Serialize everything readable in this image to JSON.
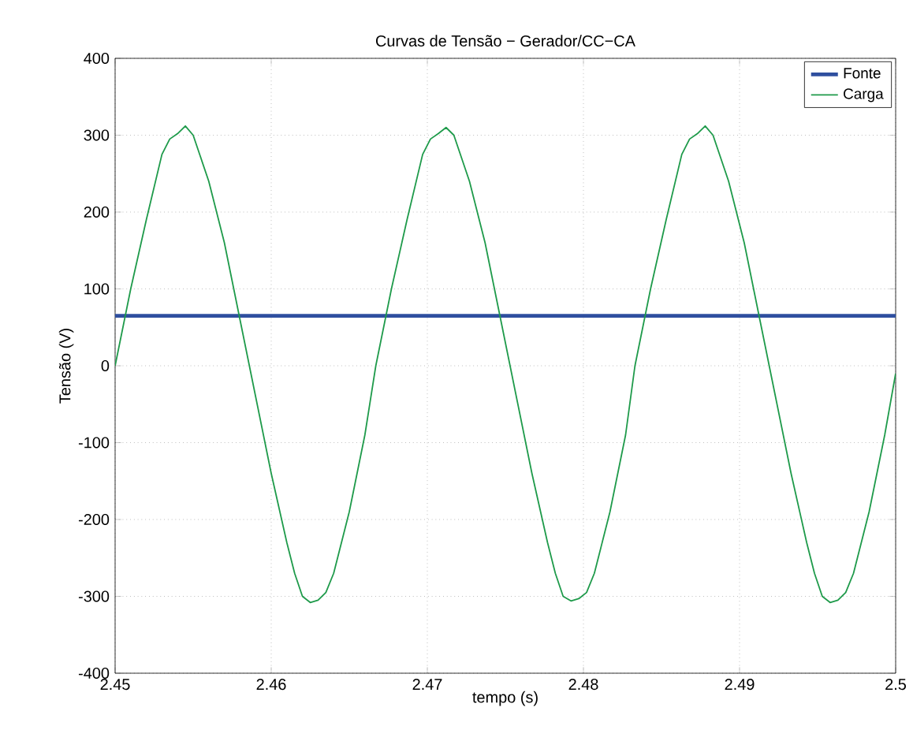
{
  "chart_data": {
    "type": "line",
    "title": "Curvas de Tensão − Gerador/CC−CA",
    "xlabel": "tempo (s)",
    "ylabel": "Tensão (V)",
    "xlim": [
      2.45,
      2.5
    ],
    "xticks": [
      2.45,
      2.46,
      2.47,
      2.48,
      2.49,
      2.5
    ],
    "ylim": [
      -400,
      400
    ],
    "yticks": [
      -400,
      -300,
      -200,
      -100,
      0,
      100,
      200,
      300,
      400
    ],
    "grid": true,
    "legend": "top right",
    "series": [
      {
        "name": "Fonte",
        "color": "#2f4f9f",
        "x": [
          2.45,
          2.5
        ],
        "values": [
          65,
          65
        ]
      },
      {
        "name": "Carga",
        "color": "#1e9a4a",
        "x": [
          2.45,
          2.451,
          2.452,
          2.453,
          2.4535,
          2.454,
          2.4545,
          2.455,
          2.456,
          2.457,
          2.458,
          2.459,
          2.46,
          2.461,
          2.4615,
          2.462,
          2.4625,
          2.463,
          2.4635,
          2.464,
          2.465,
          2.466,
          2.4667,
          2.4677,
          2.4687,
          2.4697,
          2.4702,
          2.4707,
          2.4712,
          2.4717,
          2.4727,
          2.4737,
          2.4747,
          2.4757,
          2.4767,
          2.4777,
          2.4782,
          2.4787,
          2.4792,
          2.4797,
          2.4802,
          2.4807,
          2.4817,
          2.4827,
          2.4833,
          2.4843,
          2.4853,
          2.4863,
          2.4868,
          2.4873,
          2.4878,
          2.4883,
          2.4893,
          2.4903,
          2.4913,
          2.4923,
          2.4933,
          2.4943,
          2.4948,
          2.4953,
          2.4958,
          2.4963,
          2.4968,
          2.4973,
          2.4983,
          2.4993,
          2.5
        ],
        "values": [
          0,
          100,
          190,
          275,
          295,
          302,
          312,
          300,
          240,
          160,
          60,
          -40,
          -140,
          -230,
          -270,
          -300,
          -308,
          -305,
          -295,
          -270,
          -190,
          -90,
          0,
          100,
          190,
          275,
          295,
          302,
          310,
          300,
          240,
          160,
          60,
          -40,
          -140,
          -230,
          -270,
          -300,
          -306,
          -303,
          -295,
          -270,
          -190,
          -90,
          0,
          100,
          190,
          275,
          295,
          302,
          312,
          300,
          240,
          160,
          60,
          -40,
          -140,
          -230,
          -270,
          -300,
          -308,
          -305,
          -295,
          -270,
          -190,
          -90,
          -10
        ]
      }
    ]
  }
}
